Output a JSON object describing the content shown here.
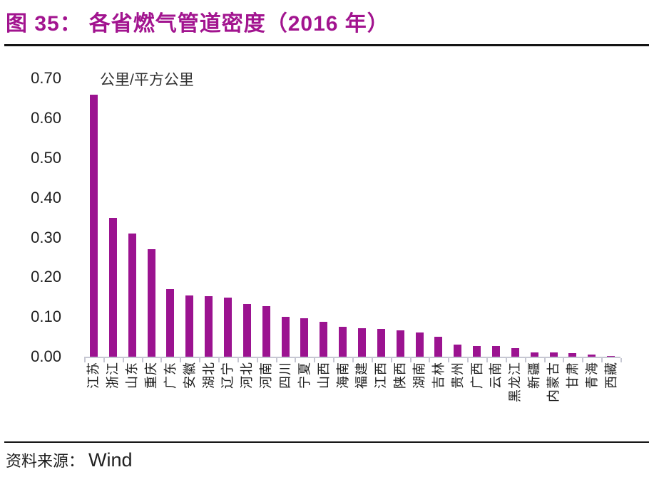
{
  "header": {
    "figure_label": "图 35：",
    "title": "各省燃气管道密度（2016 年）"
  },
  "chart_data": {
    "type": "bar",
    "title": "各省燃气管道密度（2016年）",
    "unit_label": "公里/平方公里",
    "xlabel": "",
    "ylabel": "公里/平方公里",
    "categories": [
      "江苏",
      "浙江",
      "山东",
      "重庆",
      "广东",
      "安徽",
      "湖北",
      "辽宁",
      "河北",
      "河南",
      "四川",
      "宁夏",
      "山西",
      "海南",
      "福建",
      "江西",
      "陕西",
      "湖南",
      "吉林",
      "贵州",
      "广西",
      "云南",
      "黑龙江",
      "新疆",
      "内蒙古",
      "甘肃",
      "青海",
      "西藏"
    ],
    "values": [
      0.66,
      0.35,
      0.31,
      0.27,
      0.17,
      0.155,
      0.152,
      0.149,
      0.132,
      0.127,
      0.1,
      0.097,
      0.087,
      0.075,
      0.072,
      0.069,
      0.066,
      0.061,
      0.05,
      0.03,
      0.027,
      0.026,
      0.022,
      0.011,
      0.011,
      0.009,
      0.005,
      0.002
    ],
    "ylim": [
      0,
      0.7
    ],
    "ytick_step": 0.1,
    "ytick_labels": [
      "0.00",
      "0.10",
      "0.20",
      "0.30",
      "0.40",
      "0.50",
      "0.60",
      "0.70"
    ],
    "grid": false,
    "legend": false,
    "bar_color": "#9B1390",
    "axis_color": "#C6C7D2"
  },
  "footer": {
    "source_label": "资料来源：",
    "source_value": "Wind"
  },
  "colors": {
    "accent_magenta": "#A2148F",
    "bar_magenta": "#9B1390",
    "axis_gray": "#C6C7D2",
    "rule_black": "#141414"
  }
}
